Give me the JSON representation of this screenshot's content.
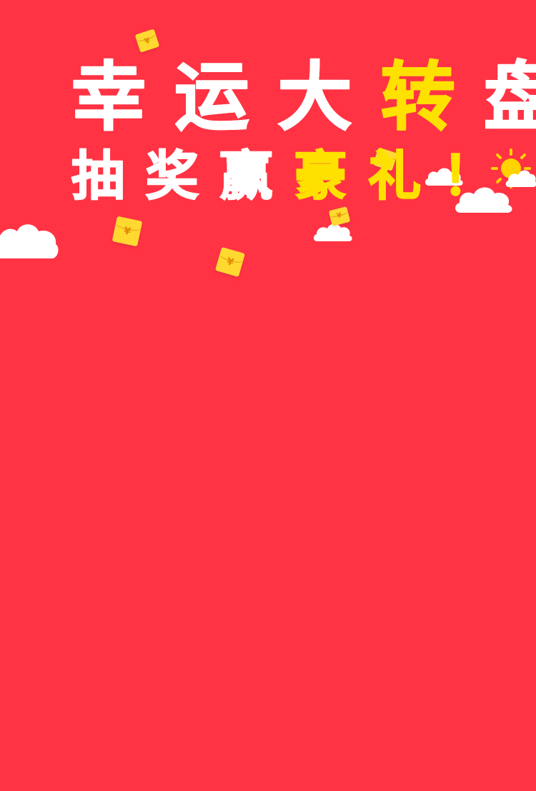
{
  "theme": {
    "background": "#FF3344",
    "white": "#FFFFFF",
    "yellow": "#FFE100",
    "envelope": "#FFD930",
    "envelope_dark": "#F3B800",
    "yen_color": "#E08A00",
    "sun": "#FFD200"
  },
  "title": {
    "line1": [
      {
        "text": "幸",
        "color": "white"
      },
      {
        "text": "运",
        "color": "white"
      },
      {
        "text": "大",
        "color": "white"
      },
      {
        "text": "转",
        "color": "yellow"
      },
      {
        "text": "盘",
        "color": "white"
      }
    ],
    "line2": [
      {
        "text": "抽",
        "color": "white"
      },
      {
        "text": "奖",
        "color": "white"
      },
      {
        "text": "赢",
        "color": "white"
      },
      {
        "text": "豪",
        "color": "yellow"
      },
      {
        "text": "礼",
        "color": "yellow"
      },
      {
        "text": "！",
        "color": "yellow"
      }
    ]
  },
  "decorations": {
    "envelope_symbol": "¥",
    "icons": [
      "cloud-icon",
      "sun-icon",
      "red-envelope-icon"
    ]
  }
}
